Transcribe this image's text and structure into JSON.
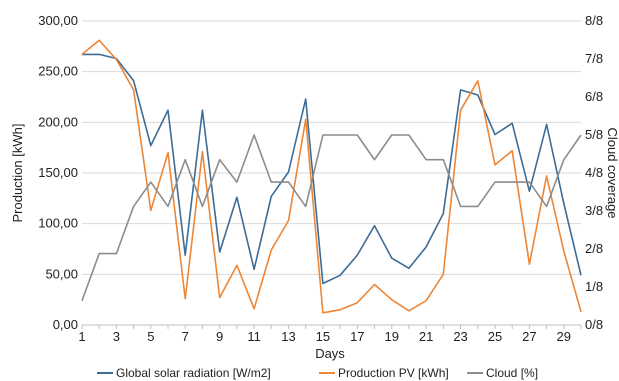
{
  "chart_data": {
    "type": "line",
    "x": [
      1,
      2,
      3,
      4,
      5,
      6,
      7,
      8,
      9,
      10,
      11,
      12,
      13,
      14,
      15,
      16,
      17,
      18,
      19,
      20,
      21,
      22,
      23,
      24,
      25,
      26,
      27,
      28,
      29,
      30
    ],
    "x_ticks": [
      "1",
      "3",
      "5",
      "7",
      "9",
      "11",
      "13",
      "15",
      "17",
      "19",
      "21",
      "23",
      "25",
      "27",
      "29"
    ],
    "xlabel": "Days",
    "ylabel_left": "Production [kWh]",
    "ylabel_right": "Cloud coverage",
    "ylim_left": [
      0,
      300
    ],
    "ylim_right": [
      0,
      8
    ],
    "y_ticks_left": [
      "0,00",
      "50,00",
      "100,00",
      "150,00",
      "200,00",
      "250,00",
      "300,00"
    ],
    "y_ticks_right": [
      "0/8",
      "1/8",
      "2/8",
      "3/8",
      "4/8",
      "5/8",
      "6/8",
      "7/8",
      "8/8"
    ],
    "grid": true,
    "legend_position": "bottom",
    "series": [
      {
        "name": "Global solar radiation [W/m2]",
        "axis": "left",
        "color": "#3e6c95",
        "values": [
          267,
          267,
          263,
          241,
          177,
          212,
          69,
          212,
          72,
          126,
          55,
          127,
          151,
          223,
          41,
          49,
          69,
          98,
          66,
          56,
          77,
          110,
          232,
          227,
          188,
          199,
          132,
          198,
          120,
          49
        ]
      },
      {
        "name": "Production PV [kWh]",
        "axis": "left",
        "color": "#ed8636",
        "values": [
          267,
          281,
          262,
          232,
          113,
          170,
          26,
          171,
          27,
          59,
          16,
          74,
          103,
          203,
          12,
          15,
          22,
          40,
          25,
          14,
          24,
          50,
          212,
          241,
          158,
          172,
          60,
          147,
          73,
          13
        ]
      },
      {
        "name": "Cloud [%]",
        "axis": "right",
        "color": "#8c8c8c",
        "values": [
          0.64,
          1.88,
          1.88,
          3.12,
          3.76,
          3.12,
          4.35,
          3.12,
          4.35,
          3.76,
          5.0,
          3.76,
          3.76,
          3.12,
          5.0,
          5.0,
          5.0,
          4.35,
          5.0,
          5.0,
          4.35,
          4.35,
          3.12,
          3.12,
          3.76,
          3.76,
          3.76,
          3.12,
          4.35,
          5.0
        ]
      }
    ]
  }
}
